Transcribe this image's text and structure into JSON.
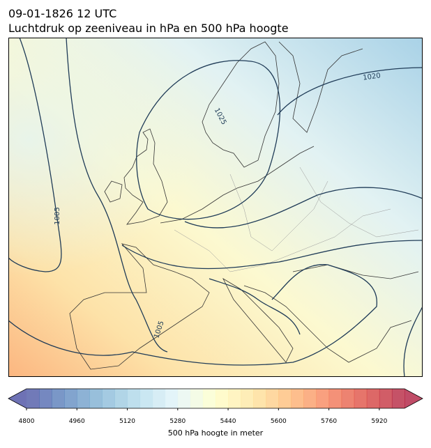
{
  "header": {
    "title": "09-01-1826 12 UTC",
    "subtitle": "Luchtdruk op zeeniveau in hPa en 500 hPa hoogte"
  },
  "map": {
    "contour_labels": [
      1020,
      1025,
      1005,
      1005
    ]
  },
  "colorbar": {
    "label": "500 hPa hoogte in meter",
    "lim": [
      4800,
      6000
    ],
    "ticks": [
      4800,
      4960,
      5120,
      5280,
      5440,
      5600,
      5760,
      5920
    ]
  }
}
